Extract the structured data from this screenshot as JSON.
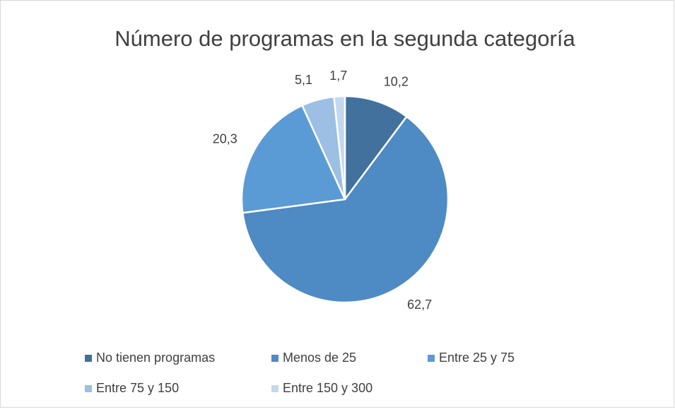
{
  "chart_data": {
    "type": "pie",
    "title": "Número de programas en la segunda categoría",
    "categories": [
      "No tienen programas",
      "Menos de 25",
      "Entre 25 y 75",
      "Entre 75 y 150",
      "Entre 150 y 300"
    ],
    "values": [
      10.2,
      62.7,
      20.3,
      5.1,
      1.7
    ],
    "value_labels": [
      "10,2",
      "62,7",
      "20,3",
      "5,1",
      "1,7"
    ],
    "colors": [
      "#41719c",
      "#4e8ac3",
      "#5b9bd5",
      "#9cbfe3",
      "#c3d8ef"
    ],
    "legend": "bottom"
  }
}
